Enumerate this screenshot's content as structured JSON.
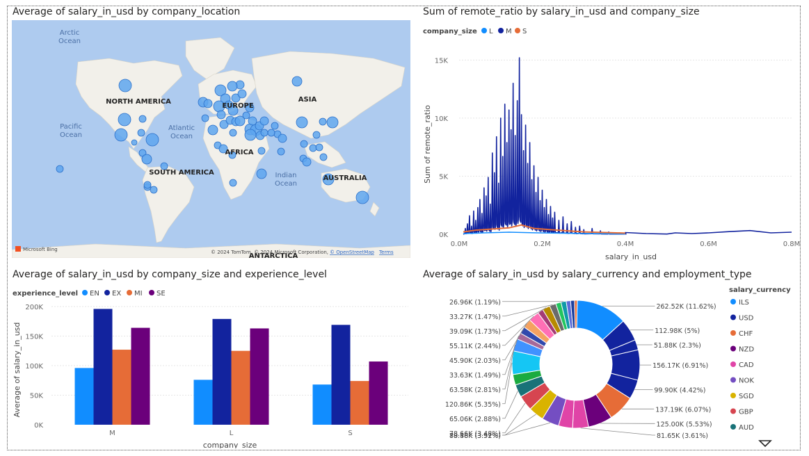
{
  "map": {
    "title": "Average of salary_in_usd by company_location",
    "labels": {
      "arctic": "Arctic\nOcean",
      "north_america": "NORTH AMERICA",
      "europe": "EUROPE",
      "asia": "ASIA",
      "pacific": "Pacific\nOcean",
      "atlantic": "Atlantic\nOcean",
      "africa": "AFRICA",
      "south_america": "SOUTH AMERICA",
      "indian": "Indian\nOcean",
      "australia": "AUSTRALIA",
      "antarctica": "ANTARCTICA"
    },
    "bing": "Microsoft Bing",
    "copyright": "© 2024 TomTom, © 2024 Microsoft Corporation,",
    "osm": "© OpenStreetMap",
    "terms": "Terms",
    "colors": {
      "water": "#aecbef",
      "land": "#f2f0ea",
      "bubble": "#5ea6ef",
      "bubble_stroke": "#2a6fc9"
    }
  },
  "chart_data": [
    {
      "type": "line",
      "title": "Sum of remote_ratio by salary_in_usd and company_size",
      "xlabel": "salary_in_usd",
      "ylabel": "Sum of remote_ratio",
      "xlim": [
        0,
        800000
      ],
      "ylim": [
        0,
        15500
      ],
      "x_ticks": [
        "0.0M",
        "0.2M",
        "0.4M",
        "0.6M",
        "0.8M"
      ],
      "y_ticks": [
        "0K",
        "5K",
        "10K",
        "15K"
      ],
      "legend_title": "company_size",
      "legend_position": "top-left",
      "series": [
        {
          "name": "L",
          "color": "#118dff"
        },
        {
          "name": "M",
          "color": "#12239e"
        },
        {
          "name": "S",
          "color": "#e66c37"
        }
      ],
      "peaks_M": [
        [
          15000,
          500
        ],
        [
          20000,
          900
        ],
        [
          25000,
          1600
        ],
        [
          30000,
          700
        ],
        [
          35000,
          2000
        ],
        [
          40000,
          1200
        ],
        [
          45000,
          2300
        ],
        [
          50000,
          3000
        ],
        [
          55000,
          1800
        ],
        [
          60000,
          4000
        ],
        [
          65000,
          3300
        ],
        [
          70000,
          4900
        ],
        [
          75000,
          2600
        ],
        [
          80000,
          7000
        ],
        [
          85000,
          5300
        ],
        [
          90000,
          8400
        ],
        [
          95000,
          4400
        ],
        [
          100000,
          10000
        ],
        [
          105000,
          6700
        ],
        [
          110000,
          11200
        ],
        [
          115000,
          7900
        ],
        [
          120000,
          10700
        ],
        [
          125000,
          9000
        ],
        [
          130000,
          13000
        ],
        [
          135000,
          8500
        ],
        [
          140000,
          11500
        ],
        [
          145000,
          15200
        ],
        [
          150000,
          10300
        ],
        [
          155000,
          7200
        ],
        [
          160000,
          9400
        ],
        [
          165000,
          6100
        ],
        [
          170000,
          7900
        ],
        [
          175000,
          4700
        ],
        [
          180000,
          5900
        ],
        [
          185000,
          3600
        ],
        [
          190000,
          4900
        ],
        [
          195000,
          2900
        ],
        [
          200000,
          3800
        ],
        [
          205000,
          2300
        ],
        [
          210000,
          3000
        ],
        [
          215000,
          1700
        ],
        [
          220000,
          2400
        ],
        [
          225000,
          1400
        ],
        [
          230000,
          1900
        ],
        [
          240000,
          1200
        ],
        [
          250000,
          1500
        ],
        [
          260000,
          900
        ],
        [
          270000,
          1100
        ],
        [
          280000,
          600
        ],
        [
          290000,
          700
        ],
        [
          300000,
          400
        ],
        [
          320000,
          500
        ],
        [
          340000,
          300
        ],
        [
          360000,
          200
        ],
        [
          400000,
          150
        ]
      ],
      "tail_M": [
        [
          400000,
          150
        ],
        [
          450000,
          60
        ],
        [
          500000,
          20
        ],
        [
          520000,
          120
        ],
        [
          560000,
          60
        ],
        [
          600000,
          120
        ],
        [
          650000,
          230
        ],
        [
          700000,
          320
        ],
        [
          750000,
          120
        ],
        [
          800000,
          180
        ]
      ],
      "line_S": [
        [
          10000,
          200
        ],
        [
          40000,
          350
        ],
        [
          80000,
          450
        ],
        [
          120000,
          550
        ],
        [
          150000,
          800
        ],
        [
          180000,
          500
        ],
        [
          220000,
          400
        ],
        [
          260000,
          300
        ],
        [
          300000,
          200
        ],
        [
          350000,
          150
        ],
        [
          400000,
          100
        ]
      ],
      "line_L": [
        [
          10000,
          50
        ],
        [
          60000,
          120
        ],
        [
          120000,
          180
        ],
        [
          180000,
          130
        ],
        [
          250000,
          90
        ],
        [
          320000,
          60
        ],
        [
          400000,
          30
        ]
      ]
    },
    {
      "type": "bar",
      "title": "Average of salary_in_usd by company_size and experience_level",
      "xlabel": "company_size",
      "ylabel": "Average of salary_in_usd",
      "categories": [
        "M",
        "L",
        "S"
      ],
      "ylim": [
        0,
        200000
      ],
      "y_ticks": [
        "0K",
        "50K",
        "100K",
        "150K",
        "200K"
      ],
      "legend_title": "experience_level",
      "legend_position": "top-left",
      "series": [
        {
          "name": "EN",
          "color": "#118dff",
          "values": [
            96000,
            76000,
            68000
          ]
        },
        {
          "name": "EX",
          "color": "#12239e",
          "values": [
            196000,
            179000,
            169000
          ]
        },
        {
          "name": "MI",
          "color": "#e66c37",
          "values": [
            127000,
            125000,
            74000
          ]
        },
        {
          "name": "SE",
          "color": "#6b007b",
          "values": [
            164000,
            163000,
            107000
          ]
        }
      ]
    },
    {
      "type": "pie",
      "title": "Average of salary_in_usd by salary_currency and employment_type",
      "legend_title": "salary_currency",
      "legend_position": "right",
      "legend": [
        {
          "name": "ILS",
          "color": "#118dff"
        },
        {
          "name": "USD",
          "color": "#12239e"
        },
        {
          "name": "CHF",
          "color": "#e66c37"
        },
        {
          "name": "NZD",
          "color": "#6b007b"
        },
        {
          "name": "CAD",
          "color": "#e044a7"
        },
        {
          "name": "NOK",
          "color": "#744ec2"
        },
        {
          "name": "SGD",
          "color": "#d9b300"
        },
        {
          "name": "GBP",
          "color": "#d64550"
        },
        {
          "name": "AUD",
          "color": "#197278"
        }
      ],
      "slices": [
        {
          "label": "262.52K (11.62%)",
          "value": 11.62,
          "color": "#118dff"
        },
        {
          "label": "112.98K (5%)",
          "value": 5.0,
          "color": "#12239e"
        },
        {
          "label": "51.88K (2.3%)",
          "value": 2.3,
          "color": "#12239e"
        },
        {
          "label": "156.17K (6.91%)",
          "value": 6.91,
          "color": "#12239e"
        },
        {
          "label": "99.90K (4.42%)",
          "value": 4.42,
          "color": "#12239e"
        },
        {
          "label": "137.19K (6.07%)",
          "value": 6.07,
          "color": "#e66c37"
        },
        {
          "label": "125.00K (5.53%)",
          "value": 5.53,
          "color": "#6b007b"
        },
        {
          "label": "81.65K (3.61%)",
          "value": 3.61,
          "color": "#e044a7"
        },
        {
          "label": "",
          "value": 3.2,
          "color": "#e044a7"
        },
        {
          "label": "88.46K (3.92%)",
          "value": 3.92,
          "color": "#744ec2"
        },
        {
          "label": "79.38K (3.51%)",
          "value": 3.51,
          "color": "#d9b300"
        },
        {
          "label": "78.66K (3.48%)",
          "value": 3.48,
          "color": "#d64550"
        },
        {
          "label": "65.06K (2.88%)",
          "value": 2.88,
          "color": "#197278"
        },
        {
          "label": "",
          "value": 2.4,
          "color": "#1aab40"
        },
        {
          "label": "120.86K (5.35%)",
          "value": 5.35,
          "color": "#15c6f4"
        },
        {
          "label": "63.58K (2.81%)",
          "value": 2.81,
          "color": "#4092ff"
        },
        {
          "label": "33.63K (1.49%)",
          "value": 1.49,
          "color": "#a66999"
        },
        {
          "label": "",
          "value": 1.6,
          "color": "#3049ad"
        },
        {
          "label": "45.90K (2.03%)",
          "value": 2.03,
          "color": "#f4a261"
        },
        {
          "label": "55.11K (2.44%)",
          "value": 2.44,
          "color": "#ff6fb5"
        },
        {
          "label": "",
          "value": 1.3,
          "color": "#a43b76"
        },
        {
          "label": "39.09K (1.73%)",
          "value": 1.73,
          "color": "#b78a00"
        },
        {
          "label": "33.27K (1.47%)",
          "value": 1.47,
          "color": "#6b6b6b"
        },
        {
          "label": "",
          "value": 1.2,
          "color": "#22c55e"
        },
        {
          "label": "26.96K (1.19%)",
          "value": 1.19,
          "color": "#0f9aa8"
        },
        {
          "label": "",
          "value": 1.0,
          "color": "#5b6cd8"
        },
        {
          "label": "",
          "value": 0.9,
          "color": "#1d3f9e"
        },
        {
          "label": "",
          "value": 0.6,
          "color": "#e66c37"
        }
      ]
    }
  ]
}
